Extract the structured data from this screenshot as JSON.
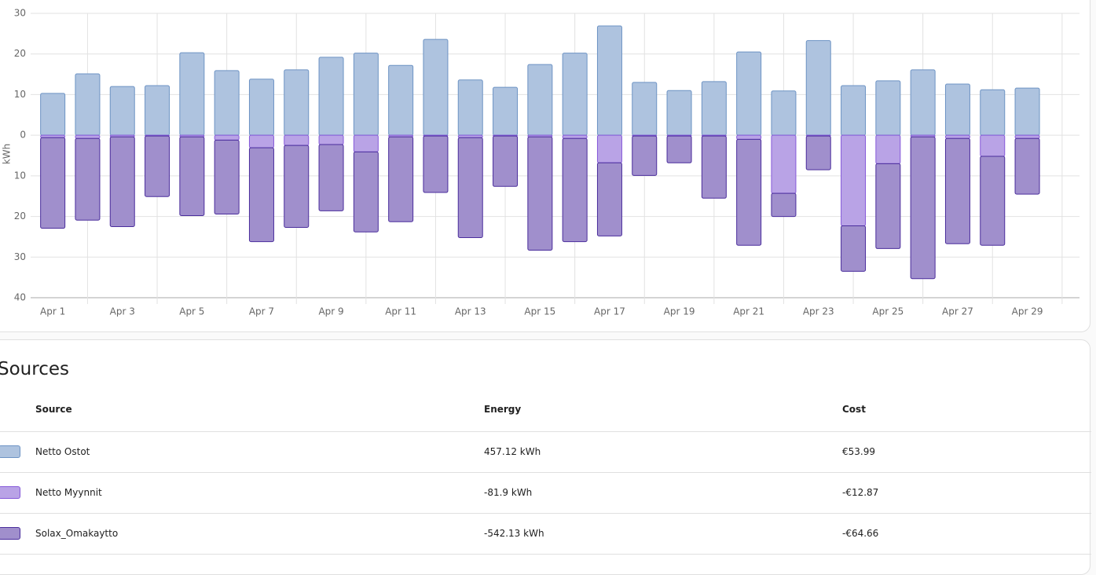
{
  "chart_data": {
    "type": "bar",
    "stacked": true,
    "y_label": "kWh",
    "categories": [
      "Apr 1",
      null,
      "Apr 3",
      null,
      "Apr 5",
      null,
      "Apr 7",
      null,
      "Apr 9",
      null,
      "Apr 11",
      null,
      "Apr 13",
      null,
      "Apr 15",
      null,
      "Apr 17",
      null,
      "Apr 19",
      null,
      "Apr 21",
      null,
      "Apr 23",
      null,
      "Apr 25",
      null,
      "Apr 27",
      null,
      "Apr 29",
      null
    ],
    "series": [
      {
        "name": "Netto Ostot",
        "color": "#aec3df",
        "border": "#6d93c4",
        "values": [
          10.3,
          15.1,
          12.0,
          12.2,
          20.3,
          15.9,
          13.8,
          16.1,
          19.2,
          20.2,
          17.2,
          23.6,
          13.6,
          11.8,
          17.4,
          20.2,
          26.9,
          13.0,
          11.0,
          13.2,
          20.5,
          10.9,
          23.3,
          12.2,
          13.4,
          16.1,
          12.6,
          11.2,
          11.6,
          null
        ]
      },
      {
        "name": "Netto Myynnit",
        "color": "#b9a3e6",
        "border": "#8559d9",
        "values": [
          -0.6,
          -0.8,
          -0.4,
          -0.2,
          -0.4,
          -1.2,
          -3.1,
          -2.5,
          -2.3,
          -4.1,
          -0.4,
          -0.2,
          -0.6,
          -0.2,
          -0.4,
          -0.8,
          -6.8,
          -0.2,
          -0.2,
          -0.2,
          -1.0,
          -14.3,
          -0.2,
          -22.3,
          -7.0,
          -0.4,
          -0.8,
          -5.2,
          -0.8,
          null
        ]
      },
      {
        "name": "Solax_Omakaytto",
        "color": "#a08fcc",
        "border": "#4a2d9c",
        "values": [
          -22.3,
          -20.1,
          -22.1,
          -14.9,
          -19.4,
          -18.2,
          -23.1,
          -20.2,
          -16.3,
          -19.7,
          -20.9,
          -13.9,
          -24.6,
          -12.4,
          -27.9,
          -25.4,
          -18.0,
          -9.7,
          -6.6,
          -15.3,
          -26.1,
          -5.7,
          -8.3,
          -11.2,
          -20.9,
          -34.9,
          -25.9,
          -21.9,
          -13.7,
          null
        ]
      }
    ],
    "ylim": [
      -40,
      30
    ],
    "yticks": [
      {
        "value": -40,
        "label": "40"
      },
      {
        "value": -30,
        "label": "30"
      },
      {
        "value": -20,
        "label": "20"
      },
      {
        "value": -10,
        "label": "10"
      },
      0,
      10,
      20,
      30
    ],
    "grid": true
  },
  "sources": {
    "title": "Sources",
    "columns": [
      "Source",
      "Energy",
      "Cost"
    ],
    "rows": [
      [
        "Netto Ostot",
        "457.12 kWh",
        "€53.99"
      ],
      [
        "Netto Myynnit",
        "-81.9 kWh",
        "-€12.87"
      ],
      [
        "Solax_Omakaytto",
        "-542.13 kWh",
        "-€64.66"
      ]
    ]
  }
}
